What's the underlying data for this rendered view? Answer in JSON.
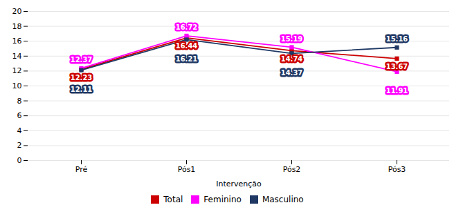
{
  "chart_data": {
    "type": "line",
    "xlabel": "Intervenção",
    "categories": [
      "Pré",
      "Pós1",
      "Pós2",
      "Pós3"
    ],
    "series": [
      {
        "name": "Total",
        "color": "#CC0000",
        "marker": "square",
        "values": [
          12.23,
          16.44,
          14.74,
          13.67
        ]
      },
      {
        "name": "Feminino",
        "color": "#FF00FF",
        "marker": "square",
        "values": [
          12.37,
          16.72,
          15.19,
          11.91
        ]
      },
      {
        "name": "Masculino",
        "color": "#1F3864",
        "marker": "square",
        "values": [
          12.11,
          16.21,
          14.37,
          15.16
        ]
      }
    ],
    "ylim": [
      0,
      20
    ],
    "yticks": [
      0,
      2,
      4,
      6,
      8,
      10,
      12,
      14,
      16,
      18,
      20
    ],
    "grid": true,
    "data_labels": true,
    "legend": "bottom"
  }
}
